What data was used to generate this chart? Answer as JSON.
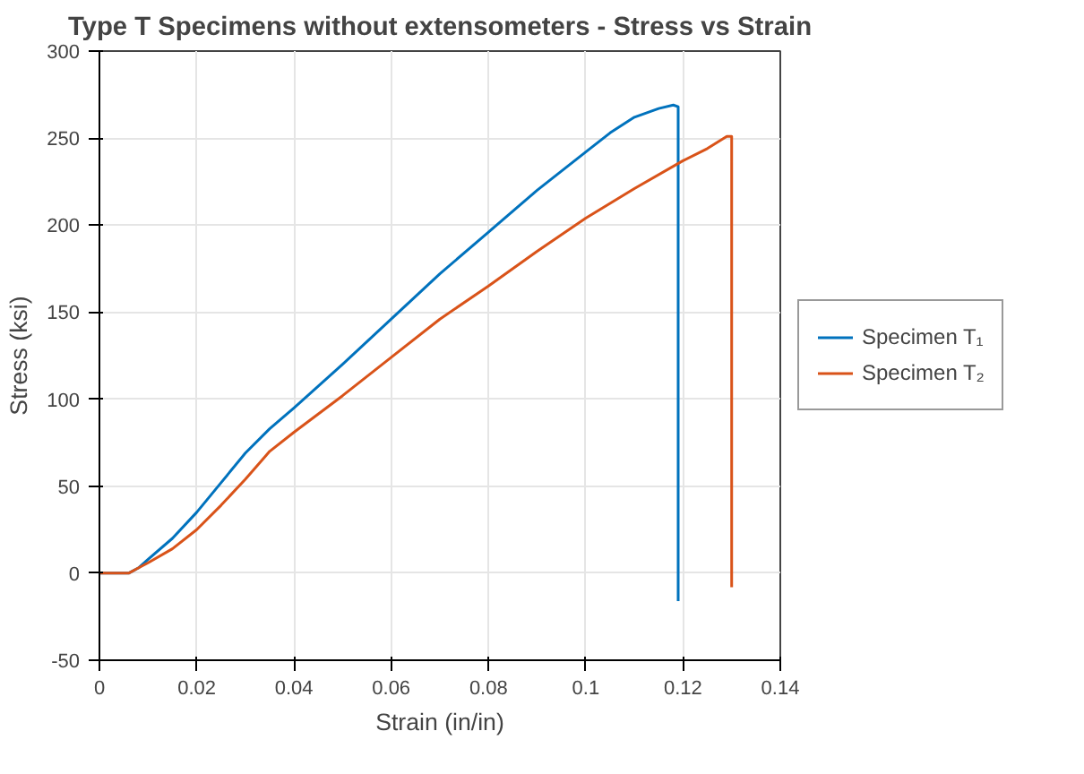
{
  "chart_data": {
    "type": "line",
    "title": "Type T Specimens without extensometers - Stress vs Strain",
    "xlabel": "Strain (in/in)",
    "ylabel": "Stress (ksi)",
    "xlim": [
      0,
      0.14
    ],
    "xticks": [
      0,
      0.02,
      0.04,
      0.06,
      0.08,
      0.1,
      0.12,
      0.14
    ],
    "ylim": [
      -50,
      300
    ],
    "yticks": [
      -50,
      0,
      50,
      100,
      150,
      200,
      250,
      300
    ],
    "grid": true,
    "legend": "right",
    "line_style": "solid",
    "series": [
      {
        "name": "Specimen T₁",
        "color": "#0072bd",
        "x": [
          0,
          0.006,
          0.008,
          0.01,
          0.015,
          0.02,
          0.025,
          0.03,
          0.035,
          0.04,
          0.05,
          0.06,
          0.07,
          0.08,
          0.09,
          0.1,
          0.105,
          0.11,
          0.115,
          0.118,
          0.119,
          0.119
        ],
        "values": [
          0,
          0,
          3,
          8,
          20,
          35,
          52,
          69,
          83,
          95,
          120,
          146,
          172,
          196,
          220,
          242,
          253,
          262,
          267,
          269,
          268,
          -16
        ]
      },
      {
        "name": "Specimen T₂",
        "color": "#d95319",
        "x": [
          0,
          0.006,
          0.008,
          0.01,
          0.015,
          0.02,
          0.025,
          0.03,
          0.035,
          0.04,
          0.05,
          0.06,
          0.07,
          0.08,
          0.09,
          0.1,
          0.11,
          0.12,
          0.125,
          0.129,
          0.13,
          0.13
        ],
        "values": [
          0,
          0,
          3,
          6,
          14,
          25,
          39,
          54,
          70,
          81,
          102,
          124,
          146,
          165,
          185,
          204,
          221,
          237,
          244,
          251,
          251,
          -8
        ]
      }
    ]
  }
}
